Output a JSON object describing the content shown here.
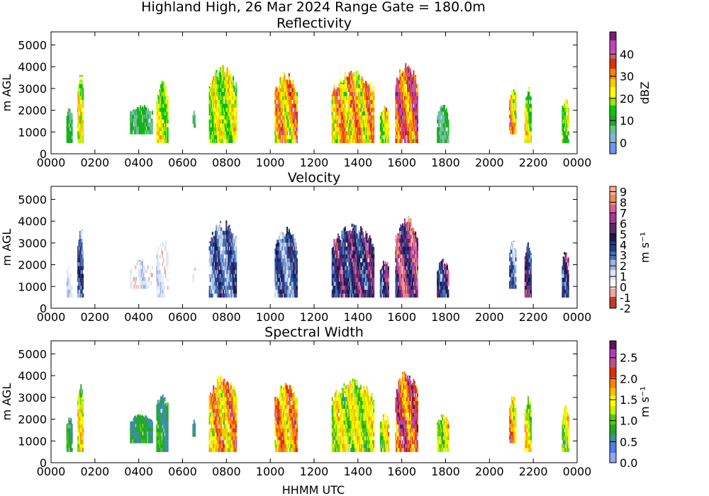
{
  "suptitle": "Highland High, 26 Mar 2024 Range Gate = 180.0m",
  "xlabel": "HHMM UTC",
  "chart_data": [
    {
      "type": "heatmap",
      "title": "Reflectivity",
      "ylabel": "m AGL",
      "xticks": [
        "0000",
        "0200",
        "0400",
        "0600",
        "0800",
        "1000",
        "1200",
        "1400",
        "1600",
        "1800",
        "2000",
        "2200",
        "0000"
      ],
      "yticks": [
        0,
        1000,
        2000,
        3000,
        4000,
        5000
      ],
      "xlim_hours": [
        0,
        24
      ],
      "ylim": [
        0,
        5600
      ],
      "colorbar": {
        "label": "dBZ",
        "min": -5,
        "max": 50,
        "ticks": [
          "0",
          "10",
          "20",
          "30",
          "40"
        ],
        "colors": [
          "#6f94f5",
          "#7fb7dc",
          "#66c48a",
          "#22a52a",
          "#00cc00",
          "#99e600",
          "#ffff00",
          "#ffcc00",
          "#ff7f00",
          "#e03000",
          "#c85a8a",
          "#c040c0",
          "#7a1a7a"
        ]
      },
      "events": [
        {
          "t": [
            0.7,
            0.95
          ],
          "top": 2200,
          "bottom": 500,
          "class": "low"
        },
        {
          "t": [
            1.2,
            1.45
          ],
          "top": 3800,
          "bottom": 500,
          "class": "mid"
        },
        {
          "t": [
            3.6,
            4.6
          ],
          "top": 2300,
          "bottom": 900,
          "class": "low"
        },
        {
          "t": [
            4.8,
            5.3
          ],
          "top": 3400,
          "bottom": 500,
          "class": "mid"
        },
        {
          "t": [
            6.45,
            6.55
          ],
          "top": 2000,
          "bottom": 1200,
          "class": "low"
        },
        {
          "t": [
            7.2,
            8.45
          ],
          "top": 4100,
          "bottom": 500,
          "class": "mid"
        },
        {
          "t": [
            10.2,
            11.2
          ],
          "top": 3800,
          "bottom": 500,
          "class": "high"
        },
        {
          "t": [
            12.8,
            14.7
          ],
          "top": 3900,
          "bottom": 500,
          "class": "high"
        },
        {
          "t": [
            15.0,
            15.4
          ],
          "top": 2300,
          "bottom": 500,
          "class": "mid"
        },
        {
          "t": [
            15.7,
            16.7
          ],
          "top": 4300,
          "bottom": 500,
          "class": "peak"
        },
        {
          "t": [
            17.6,
            18.1
          ],
          "top": 2300,
          "bottom": 500,
          "class": "low"
        },
        {
          "t": [
            20.9,
            21.2
          ],
          "top": 3200,
          "bottom": 900,
          "class": "high"
        },
        {
          "t": [
            21.6,
            21.9
          ],
          "top": 3100,
          "bottom": 500,
          "class": "mid"
        },
        {
          "t": [
            23.3,
            23.6
          ],
          "top": 2700,
          "bottom": 500,
          "class": "mid"
        }
      ]
    },
    {
      "type": "heatmap",
      "title": "Velocity",
      "ylabel": "m AGL",
      "xticks": [
        "0000",
        "0200",
        "0400",
        "0600",
        "0800",
        "1000",
        "1200",
        "1400",
        "1600",
        "1800",
        "2000",
        "2200",
        "0000"
      ],
      "yticks": [
        0,
        1000,
        2000,
        3000,
        4000,
        5000
      ],
      "xlim_hours": [
        0,
        24
      ],
      "ylim": [
        0,
        5600
      ],
      "colorbar": {
        "label": "m s⁻¹",
        "min": -2,
        "max": 9.5,
        "ticks": [
          "-2",
          "-1",
          "0",
          "1",
          "2",
          "3",
          "4",
          "5",
          "6",
          "7",
          "8",
          "9"
        ],
        "colors": [
          "#c23b22",
          "#f3a59b",
          "#ffffff",
          "#dce6f5",
          "#9fb6df",
          "#4a6fb5",
          "#1f3f8a",
          "#1a1a4a",
          "#5a2a6a",
          "#a03a9a",
          "#e05a9a",
          "#f08a5a",
          "#f5b08a"
        ]
      },
      "events": [
        {
          "t": [
            0.7,
            0.95
          ],
          "top": 2200,
          "bottom": 500,
          "class": "low"
        },
        {
          "t": [
            1.2,
            1.45
          ],
          "top": 3800,
          "bottom": 500,
          "class": "mid"
        },
        {
          "t": [
            3.6,
            4.6
          ],
          "top": 2300,
          "bottom": 900,
          "class": "low"
        },
        {
          "t": [
            4.8,
            5.3
          ],
          "top": 3400,
          "bottom": 500,
          "class": "low"
        },
        {
          "t": [
            6.45,
            6.55
          ],
          "top": 2000,
          "bottom": 1200,
          "class": "low"
        },
        {
          "t": [
            7.2,
            8.45
          ],
          "top": 4100,
          "bottom": 500,
          "class": "mid"
        },
        {
          "t": [
            10.2,
            11.2
          ],
          "top": 3800,
          "bottom": 500,
          "class": "mid"
        },
        {
          "t": [
            12.8,
            14.7
          ],
          "top": 3900,
          "bottom": 500,
          "class": "high"
        },
        {
          "t": [
            15.0,
            15.4
          ],
          "top": 2300,
          "bottom": 500,
          "class": "high"
        },
        {
          "t": [
            15.7,
            16.7
          ],
          "top": 4300,
          "bottom": 500,
          "class": "peak"
        },
        {
          "t": [
            17.6,
            18.1
          ],
          "top": 2300,
          "bottom": 500,
          "class": "high"
        },
        {
          "t": [
            20.9,
            21.2
          ],
          "top": 3200,
          "bottom": 900,
          "class": "mid"
        },
        {
          "t": [
            21.6,
            21.9
          ],
          "top": 3100,
          "bottom": 500,
          "class": "high"
        },
        {
          "t": [
            23.3,
            23.6
          ],
          "top": 2700,
          "bottom": 500,
          "class": "high"
        }
      ]
    },
    {
      "type": "heatmap",
      "title": "Spectral Width",
      "ylabel": "m AGL",
      "xticks": [
        "0000",
        "0200",
        "0400",
        "0600",
        "0800",
        "1000",
        "1200",
        "1400",
        "1600",
        "1800",
        "2000",
        "2200",
        "0000"
      ],
      "yticks": [
        0,
        1000,
        2000,
        3000,
        4000,
        5000
      ],
      "xlim_hours": [
        0,
        24
      ],
      "ylim": [
        0,
        5600
      ],
      "colorbar": {
        "label": "m s⁻¹",
        "min": 0,
        "max": 2.9,
        "ticks": [
          "0.0",
          "0.5",
          "1.0",
          "1.5",
          "2.0",
          "2.5"
        ],
        "colors": [
          "#8fa8f0",
          "#4f7bef",
          "#3a90a0",
          "#22aa22",
          "#55cc00",
          "#ccee00",
          "#ffff00",
          "#ffc000",
          "#ff8000",
          "#e03000",
          "#c0508a",
          "#b040b0",
          "#601060"
        ]
      },
      "events": [
        {
          "t": [
            0.7,
            0.95
          ],
          "top": 2200,
          "bottom": 500,
          "class": "low"
        },
        {
          "t": [
            1.2,
            1.45
          ],
          "top": 3800,
          "bottom": 500,
          "class": "mid"
        },
        {
          "t": [
            3.6,
            4.6
          ],
          "top": 2300,
          "bottom": 900,
          "class": "low"
        },
        {
          "t": [
            4.8,
            5.3
          ],
          "top": 3400,
          "bottom": 500,
          "class": "low"
        },
        {
          "t": [
            6.45,
            6.55
          ],
          "top": 2000,
          "bottom": 1200,
          "class": "low"
        },
        {
          "t": [
            7.2,
            8.45
          ],
          "top": 4100,
          "bottom": 500,
          "class": "high"
        },
        {
          "t": [
            10.2,
            11.2
          ],
          "top": 3800,
          "bottom": 500,
          "class": "high"
        },
        {
          "t": [
            12.8,
            14.7
          ],
          "top": 3900,
          "bottom": 500,
          "class": "mid"
        },
        {
          "t": [
            15.0,
            15.4
          ],
          "top": 2300,
          "bottom": 500,
          "class": "mid"
        },
        {
          "t": [
            15.7,
            16.7
          ],
          "top": 4300,
          "bottom": 500,
          "class": "peak"
        },
        {
          "t": [
            17.6,
            18.1
          ],
          "top": 2300,
          "bottom": 500,
          "class": "mid"
        },
        {
          "t": [
            20.9,
            21.2
          ],
          "top": 3200,
          "bottom": 900,
          "class": "high"
        },
        {
          "t": [
            21.6,
            21.9
          ],
          "top": 3100,
          "bottom": 500,
          "class": "mid"
        },
        {
          "t": [
            23.3,
            23.6
          ],
          "top": 2700,
          "bottom": 500,
          "class": "mid"
        }
      ]
    }
  ]
}
